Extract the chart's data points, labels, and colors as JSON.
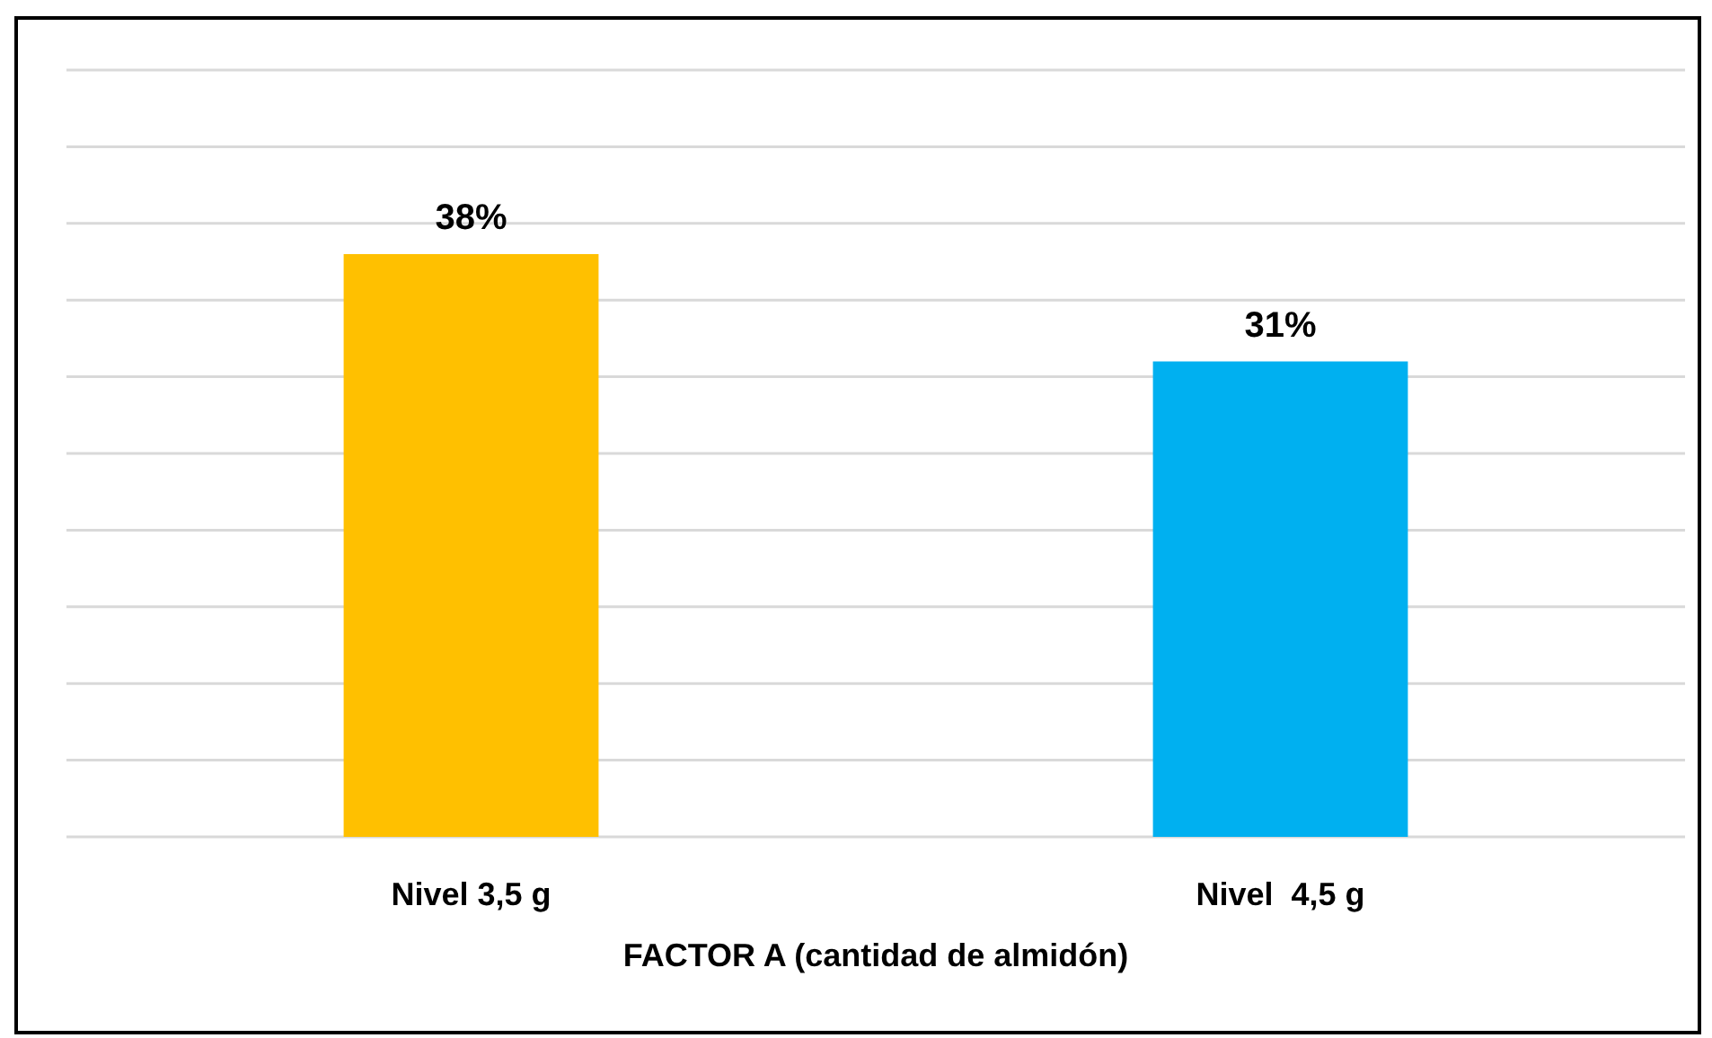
{
  "chart_data": {
    "type": "bar",
    "xlabel": "FACTOR A (cantidad de almidón)",
    "categories": [
      "Nivel 3,5 g",
      "Nivel  4,5 g"
    ],
    "values": [
      38,
      31
    ],
    "colors": [
      "#ffc000",
      "#00b0f0"
    ],
    "value_labels": [
      "38%",
      "31%"
    ],
    "ylim": [
      0,
      50
    ],
    "yticks": [
      {
        "value": 0,
        "label": null
      },
      {
        "value": 5,
        "label": null
      },
      {
        "value": 10,
        "label": null
      },
      {
        "value": 15,
        "label": null
      },
      {
        "value": 20,
        "label": null
      },
      {
        "value": 25,
        "label": null
      },
      {
        "value": 30,
        "label": null
      },
      {
        "value": 35,
        "label": null
      },
      {
        "value": 40,
        "label": null
      },
      {
        "value": 45,
        "label": null
      },
      {
        "value": 50,
        "label": null
      }
    ],
    "tick_labels": "x",
    "grid": "y"
  }
}
